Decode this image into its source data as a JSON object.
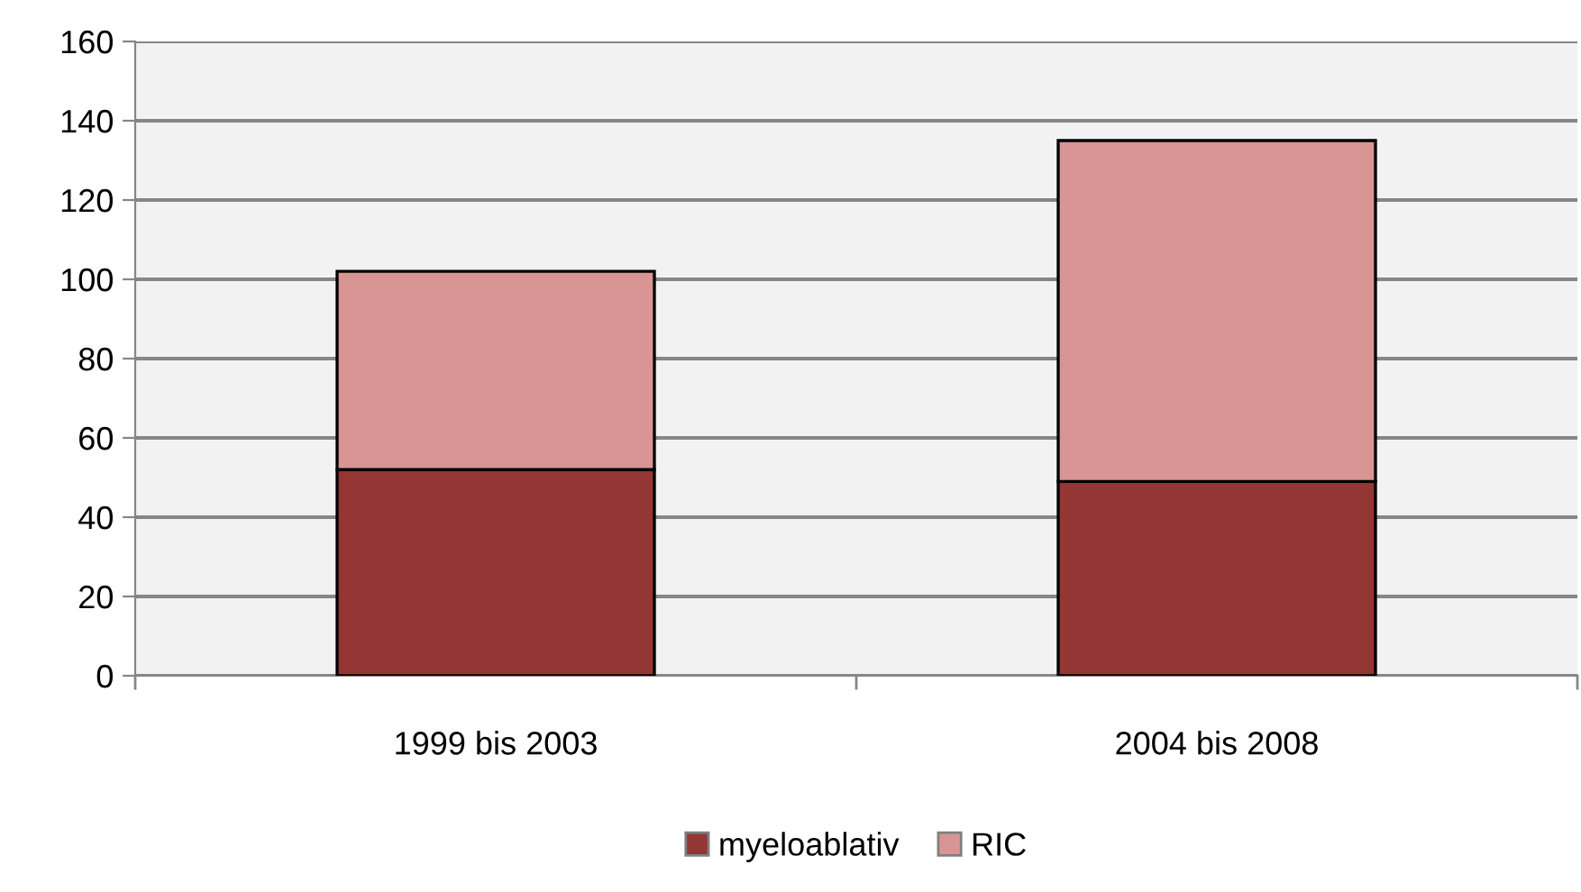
{
  "chart_data": {
    "type": "bar",
    "stacked": true,
    "categories": [
      "1999 bis 2003",
      "2004 bis 2008"
    ],
    "series": [
      {
        "name": "myeloablativ",
        "color": "#943634",
        "values": [
          52,
          49
        ]
      },
      {
        "name": "RIC",
        "color": "#d99594",
        "values": [
          50,
          86
        ]
      }
    ],
    "ylim": [
      0,
      160
    ],
    "yticks": [
      0,
      20,
      40,
      60,
      80,
      100,
      120,
      140,
      160
    ],
    "grid": "y",
    "legend": "bottom"
  }
}
